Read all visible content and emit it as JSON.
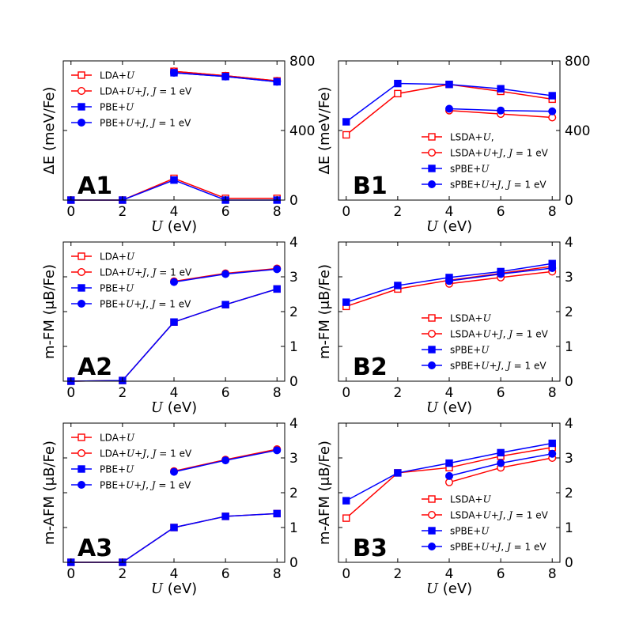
{
  "figure": {
    "xlabel_prefix": "U",
    "xlabel_suffix": " (eV)"
  },
  "colors": {
    "red": "#ff0000",
    "blue": "#0000ff"
  },
  "chart_data": [
    {
      "id": "A1",
      "type": "line",
      "panel_label": "A1",
      "ylabel": "ΔE (meV/Fe)",
      "xlabel": "U (eV)",
      "xlim": [
        -0.3,
        8.3
      ],
      "xticks": [
        0,
        2,
        4,
        6,
        8
      ],
      "ylim": [
        0,
        800
      ],
      "yticks": [
        0,
        400,
        800
      ],
      "legend_position": "top-left",
      "series": [
        {
          "name": "LDA+U",
          "color": "#ff0000",
          "marker": "square-open",
          "x": [
            0,
            2,
            4,
            6,
            8
          ],
          "values": [
            0,
            0,
            125,
            10,
            10
          ],
          "second_x": [
            4,
            6,
            8
          ],
          "second_values": [
            740,
            715,
            685
          ]
        },
        {
          "name": "LDA+U+J, J = 1 eV",
          "color": "#ff0000",
          "marker": "circle-open",
          "x": [
            4,
            6,
            8
          ],
          "values": [
            740,
            715,
            685
          ]
        },
        {
          "name": "PBE+U",
          "color": "#0000ff",
          "marker": "square-filled",
          "x": [
            0,
            2,
            4,
            6,
            8
          ],
          "values": [
            0,
            0,
            115,
            0,
            0
          ],
          "second_x": [
            4,
            6,
            8
          ],
          "second_values": [
            732,
            710,
            680
          ]
        },
        {
          "name": "PBE+U+J, J = 1 eV",
          "color": "#0000ff",
          "marker": "circle-filled",
          "x": [
            4,
            6,
            8
          ],
          "values": [
            732,
            710,
            680
          ]
        }
      ]
    },
    {
      "id": "B1",
      "type": "line",
      "panel_label": "B1",
      "ylabel": "ΔE (meV/Fe)",
      "xlabel": "U (eV)",
      "xlim": [
        -0.3,
        8.3
      ],
      "xticks": [
        0,
        2,
        4,
        6,
        8
      ],
      "ylim": [
        0,
        800
      ],
      "yticks": [
        0,
        400,
        800
      ],
      "legend_position": "bottom-right",
      "series": [
        {
          "name": "LSDA+U,",
          "color": "#ff0000",
          "marker": "square-open",
          "x": [
            0,
            2,
            4,
            6,
            8
          ],
          "values": [
            375,
            612,
            665,
            625,
            580
          ]
        },
        {
          "name": "LSDA+U+J, J = 1 eV",
          "color": "#ff0000",
          "marker": "circle-open",
          "x": [
            4,
            6,
            8
          ],
          "values": [
            515,
            495,
            475
          ]
        },
        {
          "name": "sPBE+U",
          "color": "#0000ff",
          "marker": "square-filled",
          "x": [
            0,
            2,
            4,
            6,
            8
          ],
          "values": [
            450,
            670,
            665,
            640,
            600
          ]
        },
        {
          "name": "sPBE+U+J, J = 1 eV",
          "color": "#0000ff",
          "marker": "circle-filled",
          "x": [
            4,
            6,
            8
          ],
          "values": [
            525,
            515,
            510
          ]
        }
      ]
    },
    {
      "id": "A2",
      "type": "line",
      "panel_label": "A2",
      "ylabel": "m-FM (μB/Fe)",
      "xlabel": "U (eV)",
      "xlim": [
        -0.3,
        8.3
      ],
      "xticks": [
        0,
        2,
        4,
        6,
        8
      ],
      "ylim": [
        0,
        4
      ],
      "yticks": [
        0,
        1,
        2,
        3,
        4
      ],
      "legend_position": "top-left",
      "series": [
        {
          "name": "LDA+U",
          "color": "#ff0000",
          "marker": "square-open",
          "x": [
            0,
            2,
            4,
            6,
            8
          ],
          "values": [
            0,
            0.02,
            1.7,
            2.2,
            2.65
          ]
        },
        {
          "name": "LDA+U+J, J = 1 eV",
          "color": "#ff0000",
          "marker": "circle-open",
          "x": [
            4,
            6,
            8
          ],
          "values": [
            2.87,
            3.1,
            3.24
          ]
        },
        {
          "name": "PBE+U",
          "color": "#0000ff",
          "marker": "square-filled",
          "x": [
            0,
            2,
            4,
            6,
            8
          ],
          "values": [
            0,
            0.02,
            1.7,
            2.2,
            2.65
          ]
        },
        {
          "name": "PBE+U+J, J = 1 eV",
          "color": "#0000ff",
          "marker": "circle-filled",
          "x": [
            4,
            6,
            8
          ],
          "values": [
            2.85,
            3.08,
            3.22
          ]
        }
      ]
    },
    {
      "id": "B2",
      "type": "line",
      "panel_label": "B2",
      "ylabel": "m-FM (μB/Fe)",
      "xlabel": "U (eV)",
      "xlim": [
        -0.3,
        8.3
      ],
      "xticks": [
        0,
        2,
        4,
        6,
        8
      ],
      "ylim": [
        0,
        4
      ],
      "yticks": [
        0,
        1,
        2,
        3,
        4
      ],
      "legend_position": "bottom-right",
      "series": [
        {
          "name": "LSDA+U",
          "color": "#ff0000",
          "marker": "square-open",
          "x": [
            0,
            2,
            4,
            6,
            8
          ],
          "values": [
            2.15,
            2.65,
            2.9,
            3.1,
            3.3
          ]
        },
        {
          "name": "LSDA+U+J, J = 1 eV",
          "color": "#ff0000",
          "marker": "circle-open",
          "x": [
            4,
            6,
            8
          ],
          "values": [
            2.8,
            2.98,
            3.15
          ]
        },
        {
          "name": "sPBE+U",
          "color": "#0000ff",
          "marker": "square-filled",
          "x": [
            0,
            2,
            4,
            6,
            8
          ],
          "values": [
            2.27,
            2.75,
            2.98,
            3.15,
            3.38
          ]
        },
        {
          "name": "sPBE+U+J, J = 1 eV",
          "color": "#0000ff",
          "marker": "circle-filled",
          "x": [
            4,
            6,
            8
          ],
          "values": [
            2.88,
            3.08,
            3.25
          ]
        }
      ]
    },
    {
      "id": "A3",
      "type": "line",
      "panel_label": "A3",
      "ylabel": "m-AFM (μB/Fe)",
      "xlabel": "U (eV)",
      "xlim": [
        -0.3,
        8.3
      ],
      "xticks": [
        0,
        2,
        4,
        6,
        8
      ],
      "ylim": [
        0,
        4
      ],
      "yticks": [
        0,
        1,
        2,
        3,
        4
      ],
      "legend_position": "top-left",
      "series": [
        {
          "name": "LDA+U",
          "color": "#ff0000",
          "marker": "square-open",
          "x": [
            0,
            2,
            4,
            6,
            8
          ],
          "values": [
            0,
            0,
            1.0,
            1.32,
            1.4
          ]
        },
        {
          "name": "LDA+U+J, J = 1 eV",
          "color": "#ff0000",
          "marker": "circle-open",
          "x": [
            4,
            6,
            8
          ],
          "values": [
            2.62,
            2.95,
            3.25
          ]
        },
        {
          "name": "PBE+U",
          "color": "#0000ff",
          "marker": "square-filled",
          "x": [
            0,
            2,
            4,
            6,
            8
          ],
          "values": [
            0,
            0,
            1.0,
            1.32,
            1.4
          ]
        },
        {
          "name": "PBE+U+J, J = 1 eV",
          "color": "#0000ff",
          "marker": "circle-filled",
          "x": [
            4,
            6,
            8
          ],
          "values": [
            2.6,
            2.93,
            3.22
          ]
        }
      ]
    },
    {
      "id": "B3",
      "type": "line",
      "panel_label": "B3",
      "ylabel": "m-AFM (μB/Fe)",
      "xlabel": "U (eV)",
      "xlim": [
        -0.3,
        8.3
      ],
      "xticks": [
        0,
        2,
        4,
        6,
        8
      ],
      "ylim": [
        0,
        4
      ],
      "yticks": [
        0,
        1,
        2,
        3,
        4
      ],
      "legend_position": "bottom-right",
      "series": [
        {
          "name": "LSDA+U",
          "color": "#ff0000",
          "marker": "square-open",
          "x": [
            0,
            2,
            4,
            6,
            8
          ],
          "values": [
            1.27,
            2.57,
            2.72,
            3.05,
            3.3
          ]
        },
        {
          "name": "LSDA+U+J, J = 1 eV",
          "color": "#ff0000",
          "marker": "circle-open",
          "x": [
            4,
            6,
            8
          ],
          "values": [
            2.3,
            2.72,
            3.0
          ]
        },
        {
          "name": "sPBE+U",
          "color": "#0000ff",
          "marker": "square-filled",
          "x": [
            0,
            2,
            4,
            6,
            8
          ],
          "values": [
            1.77,
            2.57,
            2.85,
            3.15,
            3.42
          ]
        },
        {
          "name": "sPBE+U+J, J = 1 eV",
          "color": "#0000ff",
          "marker": "circle-filled",
          "x": [
            4,
            6,
            8
          ],
          "values": [
            2.48,
            2.85,
            3.12
          ]
        }
      ]
    }
  ]
}
